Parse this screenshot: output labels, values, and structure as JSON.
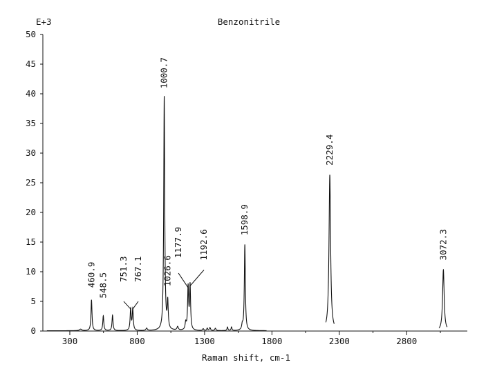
{
  "chart_data": {
    "type": "line",
    "title": "Benzonitrile",
    "xlabel": "Raman shift, cm-1",
    "ylabel": "",
    "y_multiplier_label": "E+3",
    "xlim": [
      100,
      3250
    ],
    "ylim": [
      0,
      50
    ],
    "grid": false,
    "x_ticks": [
      300,
      800,
      1300,
      1800,
      2300,
      2800
    ],
    "y_ticks": [
      0,
      5,
      10,
      15,
      20,
      25,
      30,
      35,
      40,
      45,
      50
    ],
    "peaks": [
      {
        "x": 460.9,
        "y": 5.2,
        "label": "460.9"
      },
      {
        "x": 548.5,
        "y": 2.5,
        "label": "548.5"
      },
      {
        "x": 617,
        "y": 2.6,
        "label": ""
      },
      {
        "x": 751.3,
        "y": 3.6,
        "label": "751.3"
      },
      {
        "x": 767.1,
        "y": 3.6,
        "label": "767.1"
      },
      {
        "x": 1000.7,
        "y": 39.5,
        "label": "1000.7"
      },
      {
        "x": 1026.6,
        "y": 4.5,
        "label": "1026.6"
      },
      {
        "x": 1177.9,
        "y": 7.2,
        "label": "1177.9"
      },
      {
        "x": 1192.6,
        "y": 7.5,
        "label": "1192.6"
      },
      {
        "x": 1598.9,
        "y": 14.5,
        "label": "1598.9"
      },
      {
        "x": 2229.4,
        "y": 26.3,
        "label": "2229.4"
      },
      {
        "x": 3072.3,
        "y": 10.3,
        "label": "3072.3"
      }
    ]
  }
}
